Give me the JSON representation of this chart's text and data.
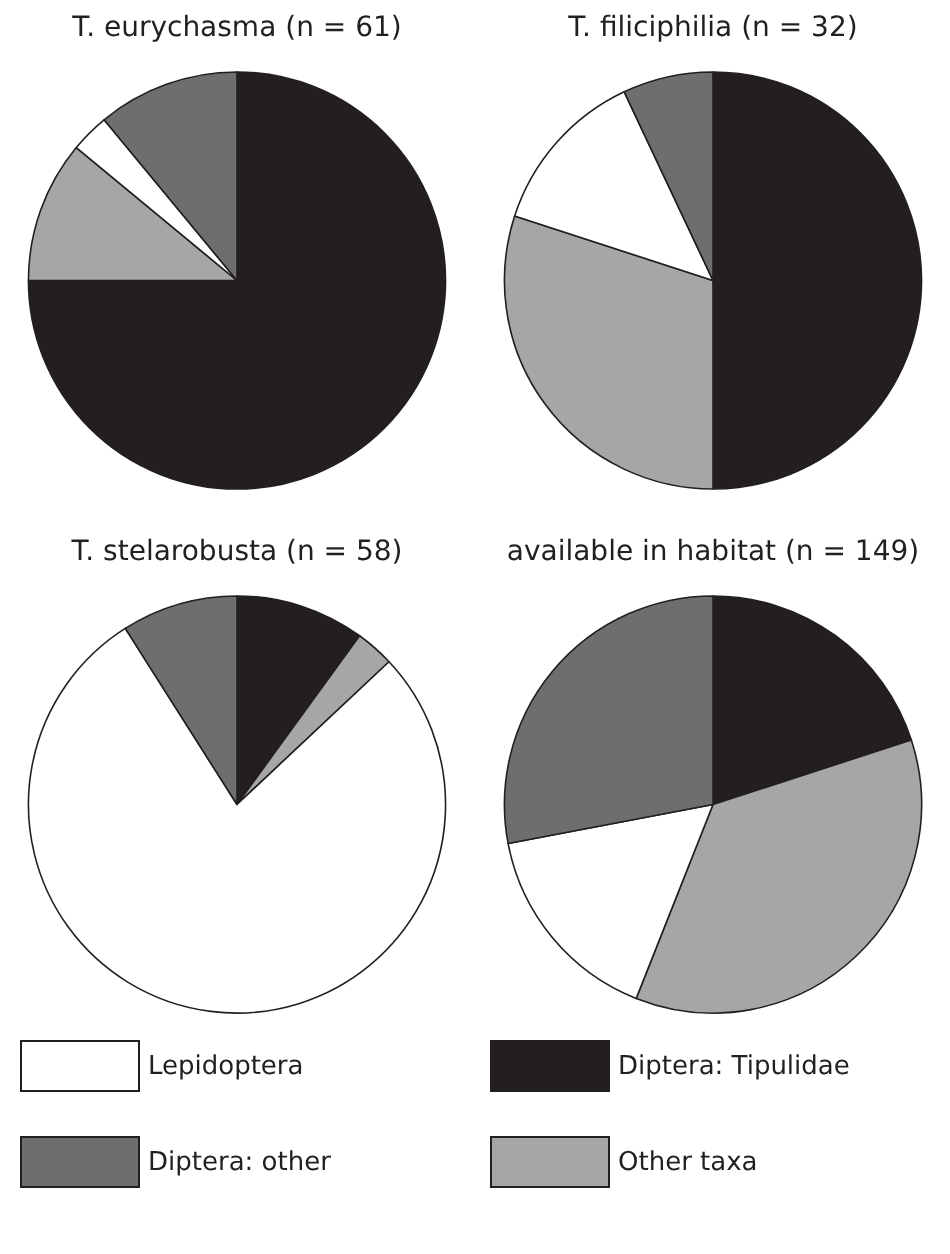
{
  "chart_data": [
    {
      "type": "pie",
      "title": "T. eurychasma (n = 61)",
      "categories": [
        "Diptera: Tipulidae",
        "Other taxa",
        "Lepidoptera",
        "Diptera: other"
      ],
      "values": [
        75,
        11,
        3,
        11
      ],
      "colors": [
        "#231f20",
        "#a6a6a6",
        "#ffffff",
        "#6e6e6e"
      ],
      "legend": "bottom"
    },
    {
      "type": "pie",
      "title": "T. filiciphilia (n = 32)",
      "categories": [
        null,
        null,
        null,
        null
      ],
      "values": [
        50,
        30,
        13,
        7
      ],
      "colors": [
        "#231f20",
        "#a6a6a6",
        "#ffffff",
        "#6e6e6e"
      ]
    },
    {
      "type": "pie",
      "title": "T. stelarobusta (n = 58)",
      "categories": [
        null,
        null,
        null,
        null
      ],
      "values": [
        10,
        3,
        78,
        9
      ],
      "colors": [
        "#231f20",
        "#a6a6a6",
        "#ffffff",
        "#6e6e6e"
      ]
    },
    {
      "type": "pie",
      "title": "available in habitat (n = 149)",
      "categories": [
        null,
        null,
        null,
        null
      ],
      "values": [
        20,
        36,
        16,
        28
      ],
      "colors": [
        "#231f20",
        "#a6a6a6",
        "#ffffff",
        "#6e6e6e"
      ]
    }
  ]
}
